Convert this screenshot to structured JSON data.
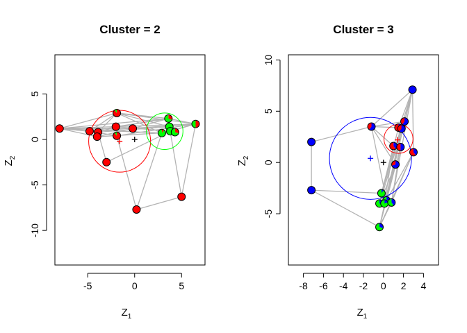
{
  "chart_data": [
    {
      "type": "scatter",
      "title": "Cluster = 2",
      "xlabel": "Z",
      "xlabel_sub": "1",
      "ylabel": "Z",
      "ylabel_sub": "2",
      "xlim": [
        -8.5,
        7.5
      ],
      "ylim": [
        -13.8,
        9.3
      ],
      "xticks": [
        -5,
        0,
        5
      ],
      "yticks": [
        -10,
        -5,
        0,
        5
      ],
      "edge_color": "#b3b3b3",
      "colors": {
        "a": "#ff0000",
        "b": "#00ff00"
      },
      "points": [
        {
          "x": -8.0,
          "y": 1.2,
          "a": 1.0,
          "b": 0.0
        },
        {
          "x": -4.8,
          "y": 0.9,
          "a": 1.0,
          "b": 0.0
        },
        {
          "x": -3.9,
          "y": 0.8,
          "a": 1.0,
          "b": 0.0
        },
        {
          "x": -4.0,
          "y": 0.3,
          "a": 1.0,
          "b": 0.0
        },
        {
          "x": -1.9,
          "y": 2.9,
          "a": 0.9,
          "b": 0.1
        },
        {
          "x": -2.0,
          "y": 1.4,
          "a": 1.0,
          "b": 0.0
        },
        {
          "x": -1.9,
          "y": 0.4,
          "a": 0.9,
          "b": 0.1
        },
        {
          "x": -0.2,
          "y": 1.2,
          "a": 1.0,
          "b": 0.0
        },
        {
          "x": -3.0,
          "y": -2.5,
          "a": 1.0,
          "b": 0.0
        },
        {
          "x": 0.2,
          "y": -7.7,
          "a": 1.0,
          "b": 0.0
        },
        {
          "x": 5.0,
          "y": -6.3,
          "a": 1.0,
          "b": 0.0
        },
        {
          "x": 2.9,
          "y": 0.7,
          "a": 0.1,
          "b": 0.9
        },
        {
          "x": 3.6,
          "y": 2.3,
          "a": 0.3,
          "b": 0.7
        },
        {
          "x": 3.7,
          "y": 1.4,
          "a": 0.0,
          "b": 1.0
        },
        {
          "x": 3.8,
          "y": 0.9,
          "a": 0.0,
          "b": 1.0
        },
        {
          "x": 4.3,
          "y": 0.8,
          "a": 0.3,
          "b": 0.7
        },
        {
          "x": 6.5,
          "y": 1.7,
          "a": 0.5,
          "b": 0.5
        }
      ],
      "edges": [
        [
          0,
          1
        ],
        [
          0,
          2
        ],
        [
          0,
          4
        ],
        [
          0,
          7
        ],
        [
          0,
          12
        ],
        [
          0,
          16
        ],
        [
          0,
          11
        ],
        [
          0,
          3
        ],
        [
          1,
          4
        ],
        [
          1,
          12
        ],
        [
          1,
          16
        ],
        [
          2,
          4
        ],
        [
          2,
          13
        ],
        [
          2,
          8
        ],
        [
          3,
          7
        ],
        [
          3,
          15
        ],
        [
          4,
          12
        ],
        [
          4,
          16
        ],
        [
          4,
          13
        ],
        [
          4,
          11
        ],
        [
          5,
          14
        ],
        [
          5,
          12
        ],
        [
          6,
          16
        ],
        [
          6,
          9
        ],
        [
          7,
          12
        ],
        [
          7,
          16
        ],
        [
          8,
          14
        ],
        [
          9,
          10
        ],
        [
          9,
          11
        ],
        [
          10,
          13
        ],
        [
          10,
          16
        ],
        [
          11,
          16
        ],
        [
          12,
          16
        ],
        [
          13,
          15
        ],
        [
          14,
          16
        ],
        [
          5,
          2
        ],
        [
          6,
          1
        ]
      ],
      "centers": [
        {
          "x": -1.6,
          "y": -0.2,
          "color": "#ff0000"
        },
        {
          "x": 0.0,
          "y": 0.0,
          "color": "#000000"
        }
      ],
      "circles": [
        {
          "x": -1.6,
          "y": -0.2,
          "r": 3.3,
          "color": "#ff0000"
        },
        {
          "x": 3.2,
          "y": 0.9,
          "r": 1.95,
          "color": "#00ff00"
        }
      ]
    },
    {
      "type": "scatter",
      "title": "Cluster = 3",
      "xlabel": "Z",
      "xlabel_sub": "1",
      "ylabel": "Z",
      "ylabel_sub": "2",
      "xlim": [
        -9.5,
        5.5
      ],
      "ylim": [
        -10.0,
        10.5
      ],
      "xticks": [
        -8,
        -6,
        -4,
        -2,
        0,
        2,
        4
      ],
      "yticks": [
        -5,
        0,
        5,
        10
      ],
      "edge_color": "#b3b3b3",
      "colors": {
        "a": "#0000ff",
        "b": "#ff0000",
        "c": "#00ff00"
      },
      "points": [
        {
          "x": -7.2,
          "y": 2.0,
          "a": 1.0,
          "b": 0.0,
          "c": 0.0
        },
        {
          "x": -7.2,
          "y": -2.7,
          "a": 1.0,
          "b": 0.0,
          "c": 0.0
        },
        {
          "x": -1.2,
          "y": 3.5,
          "a": 0.6,
          "b": 0.4,
          "c": 0.0
        },
        {
          "x": 2.9,
          "y": 7.1,
          "a": 1.0,
          "b": 0.0,
          "c": 0.0
        },
        {
          "x": 2.1,
          "y": 4.0,
          "a": 0.6,
          "b": 0.4,
          "c": 0.0
        },
        {
          "x": 1.5,
          "y": 3.4,
          "a": 0.5,
          "b": 0.5,
          "c": 0.0
        },
        {
          "x": 1.8,
          "y": 3.3,
          "a": 0.6,
          "b": 0.4,
          "c": 0.0
        },
        {
          "x": 1.0,
          "y": 1.6,
          "a": 0.4,
          "b": 0.6,
          "c": 0.0
        },
        {
          "x": 1.7,
          "y": 1.5,
          "a": 0.5,
          "b": 0.5,
          "c": 0.0
        },
        {
          "x": 1.2,
          "y": -0.2,
          "a": 0.7,
          "b": 0.3,
          "c": 0.0
        },
        {
          "x": 3.0,
          "y": 1.0,
          "a": 0.4,
          "b": 0.6,
          "c": 0.0
        },
        {
          "x": -0.2,
          "y": -3.0,
          "a": 0.1,
          "b": 0.0,
          "c": 0.9
        },
        {
          "x": 0.3,
          "y": -3.7,
          "a": 0.2,
          "b": 0.0,
          "c": 0.8
        },
        {
          "x": -0.4,
          "y": -4.0,
          "a": 0.3,
          "b": 0.0,
          "c": 0.7
        },
        {
          "x": 0.1,
          "y": -4.0,
          "a": 0.2,
          "b": 0.0,
          "c": 0.8
        },
        {
          "x": 0.8,
          "y": -3.9,
          "a": 0.4,
          "b": 0.0,
          "c": 0.6
        },
        {
          "x": -0.4,
          "y": -6.3,
          "a": 0.3,
          "b": 0.0,
          "c": 0.7
        }
      ],
      "edges": [
        [
          0,
          1
        ],
        [
          0,
          2
        ],
        [
          1,
          11
        ],
        [
          1,
          16
        ],
        [
          2,
          3
        ],
        [
          2,
          5
        ],
        [
          2,
          7
        ],
        [
          2,
          4
        ],
        [
          2,
          9
        ],
        [
          3,
          4
        ],
        [
          3,
          5
        ],
        [
          3,
          10
        ],
        [
          3,
          11
        ],
        [
          3,
          14
        ],
        [
          3,
          15
        ],
        [
          4,
          6
        ],
        [
          4,
          12
        ],
        [
          5,
          13
        ],
        [
          5,
          8
        ],
        [
          6,
          16
        ],
        [
          6,
          12
        ],
        [
          7,
          14
        ],
        [
          7,
          11
        ],
        [
          8,
          15
        ],
        [
          8,
          16
        ],
        [
          9,
          13
        ],
        [
          9,
          12
        ],
        [
          10,
          15
        ],
        [
          10,
          16
        ],
        [
          11,
          14
        ],
        [
          12,
          15
        ],
        [
          13,
          14
        ],
        [
          15,
          16
        ],
        [
          3,
          16
        ],
        [
          4,
          13
        ],
        [
          6,
          11
        ],
        [
          2,
          12
        ],
        [
          10,
          12
        ]
      ],
      "centers": [
        {
          "x": -1.3,
          "y": 0.4,
          "color": "#0000ff"
        },
        {
          "x": 1.4,
          "y": 2.2,
          "color": "#ff0000"
        },
        {
          "x": 0.0,
          "y": 0.0,
          "color": "#000000"
        }
      ],
      "circles": [
        {
          "x": -1.3,
          "y": 0.4,
          "r": 4.1,
          "color": "#0000ff"
        },
        {
          "x": 1.5,
          "y": 2.3,
          "r": 1.45,
          "color": "#ff0000"
        }
      ]
    }
  ]
}
